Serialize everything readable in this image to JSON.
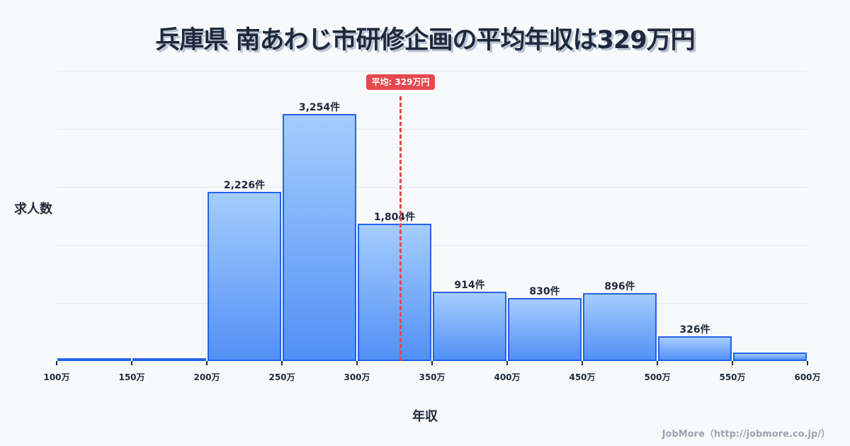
{
  "title": "兵庫県 南あわじ市研修企画の平均年収は329万円",
  "credit": "JobMore（http://jobmore.co.jp/）",
  "mean_badge": "平均: 329万円",
  "chart_data": {
    "type": "bar",
    "title": "兵庫県 南あわじ市研修企画の平均年収は329万円",
    "xlabel": "年収",
    "ylabel": "求人数",
    "categories": [
      "100-150万",
      "150-200万",
      "200-250万",
      "250-300万",
      "300-350万",
      "350-400万",
      "400-450万",
      "450-500万",
      "500-550万",
      "550-600万"
    ],
    "values": [
      15,
      40,
      2226,
      3254,
      1804,
      914,
      830,
      896,
      326,
      110
    ],
    "data_labels": [
      "",
      "",
      "2,226件",
      "3,254件",
      "1,804件",
      "914件",
      "830件",
      "896件",
      "326件",
      ""
    ],
    "x_ticks": [
      "100万",
      "150万",
      "200万",
      "250万",
      "300万",
      "350万",
      "400万",
      "450万",
      "500万",
      "550万",
      "600万"
    ],
    "ylim": [
      0,
      3820
    ],
    "grid": true,
    "mean": 329,
    "mean_label": "平均: 329万円",
    "colors": {
      "bar_border": "#2563eb",
      "bar_top": "#a5cdfd",
      "bar_bottom": "#5290f5",
      "mean_line": "#e5484d"
    }
  }
}
